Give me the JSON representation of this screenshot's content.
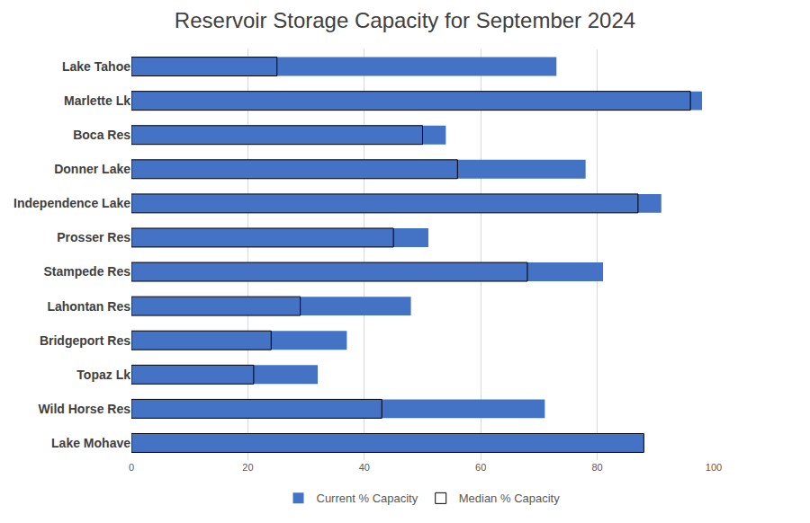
{
  "chart_data": {
    "type": "bar",
    "orientation": "horizontal",
    "title": "Reservoir Storage Capacity for September 2024",
    "categories": [
      "Lake Tahoe",
      "Marlette Lk",
      "Boca Res",
      "Donner Lake",
      "Independence Lake",
      "Prosser Res",
      "Stampede Res",
      "Lahontan Res",
      "Bridgeport Res",
      "Topaz Lk",
      "Wild Horse Res",
      "Lake Mohave"
    ],
    "series": [
      {
        "name": "Current % Capacity",
        "color": "#4472c4",
        "values": [
          73,
          98,
          54,
          78,
          91,
          51,
          81,
          48,
          37,
          32,
          71,
          88
        ]
      },
      {
        "name": "Median % Capacity",
        "color": "rgba(0,0,0,0)",
        "values": [
          25,
          96,
          50,
          56,
          87,
          45,
          68,
          29,
          24,
          21,
          43,
          88
        ]
      }
    ],
    "xlim": [
      0,
      100
    ],
    "xticks": [
      0,
      20,
      40,
      60,
      80,
      100
    ],
    "grid": true,
    "legend": "bottom"
  }
}
